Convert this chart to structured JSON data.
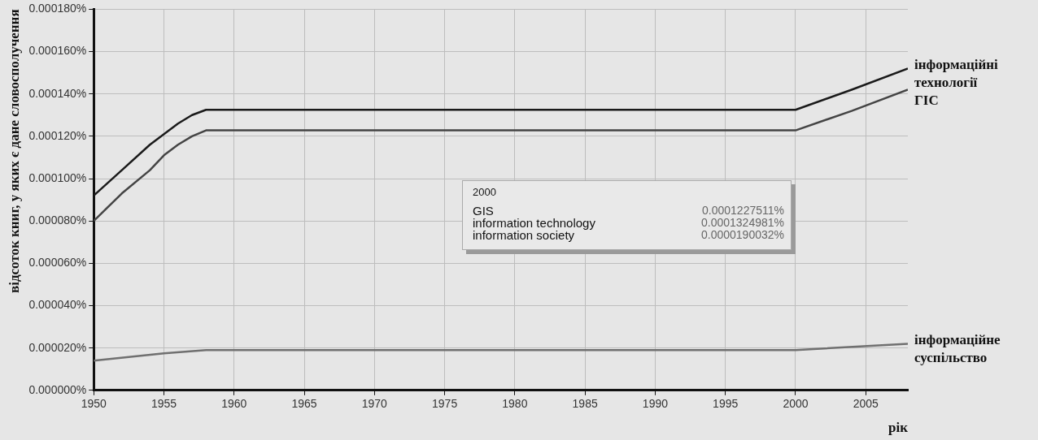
{
  "chart_data": {
    "type": "line",
    "ylabel": "відсоток книг, у яких є дане словосполучення",
    "xlabel": "рік",
    "xlim": [
      1950,
      2008
    ],
    "xticks": [
      1950,
      1955,
      1960,
      1965,
      1970,
      1975,
      1980,
      1985,
      1990,
      1995,
      2000,
      2005
    ],
    "ylim": [
      0,
      0.00018
    ],
    "yticks": [
      {
        "value": 0,
        "label": "0.000000%"
      },
      {
        "value": 2e-05,
        "label": "0.000020%"
      },
      {
        "value": 4e-05,
        "label": "0.000040%"
      },
      {
        "value": 6e-05,
        "label": "0.000060%"
      },
      {
        "value": 8e-05,
        "label": "0.000080%"
      },
      {
        "value": 0.0001,
        "label": "0.000100%"
      },
      {
        "value": 0.00012,
        "label": "0.000120%"
      },
      {
        "value": 0.00014,
        "label": "0.000140%"
      },
      {
        "value": 0.00016,
        "label": "0.000160%"
      },
      {
        "value": 0.00018,
        "label": "0.000180%"
      }
    ],
    "grid": true,
    "legend": false,
    "marker": "none",
    "line_style": "solid",
    "series": [
      {
        "name": "інформаційні технології",
        "color": "#1a1a1a",
        "x": [
          1950,
          1952,
          1954,
          1956,
          1957,
          1958,
          2000,
          2004,
          2008
        ],
        "values": [
          9.2e-05,
          0.000104,
          0.000116,
          0.000126,
          0.00013,
          0.0001325,
          0.0001325,
          0.000142,
          0.000152
        ]
      },
      {
        "name": "ГІС",
        "color": "#444444",
        "x": [
          1950,
          1952,
          1954,
          1955,
          1956,
          1957,
          1958,
          2000,
          2004,
          2008
        ],
        "values": [
          8e-05,
          9.3e-05,
          0.000104,
          0.000111,
          0.000116,
          0.00012,
          0.0001228,
          0.0001228,
          0.000132,
          0.000142
        ]
      },
      {
        "name": "інформаційне суспільство",
        "color": "#707070",
        "x": [
          1950,
          1955,
          1958,
          2000,
          2008
        ],
        "values": [
          1.4e-05,
          1.75e-05,
          1.9e-05,
          1.9e-05,
          2.2e-05
        ]
      }
    ],
    "annotations": [
      "2000",
      "GIS",
      "0.0001227511%",
      "information technology",
      "0.0001324981%",
      "information society",
      "0.0000190032%"
    ]
  }
}
